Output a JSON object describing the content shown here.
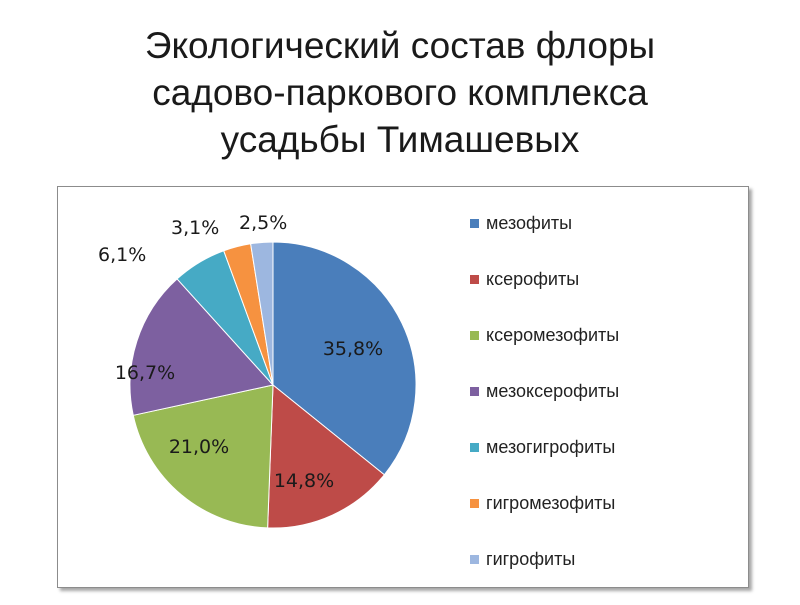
{
  "title": [
    "Экологический состав флоры",
    "садово-паркового комплекса",
    "усадьбы Тимашевых"
  ],
  "chart_data": {
    "type": "pie",
    "title": "Экологический состав флоры садово-паркового комплекса усадьбы Тимашевых",
    "legend_position": "right",
    "slices": [
      {
        "label": "мезофиты",
        "value": 35.8,
        "display": "35,8%",
        "color": "#4a7ebb"
      },
      {
        "label": "ксерофиты",
        "value": 14.8,
        "display": "14,8%",
        "color": "#be4b48"
      },
      {
        "label": "ксеромезофиты",
        "value": 21.0,
        "display": "21,0%",
        "color": "#98b954"
      },
      {
        "label": "мезоксерофиты",
        "value": 16.7,
        "display": "16,7%",
        "color": "#7d60a0"
      },
      {
        "label": "мезогигрофиты",
        "value": 6.1,
        "display": "6,1%",
        "color": "#46aac5"
      },
      {
        "label": "гигромезофиты",
        "value": 3.1,
        "display": "3,1%",
        "color": "#f69240"
      },
      {
        "label": "гигрофиты",
        "value": 2.5,
        "display": "2,5%",
        "color": "#9db7e0"
      }
    ]
  }
}
